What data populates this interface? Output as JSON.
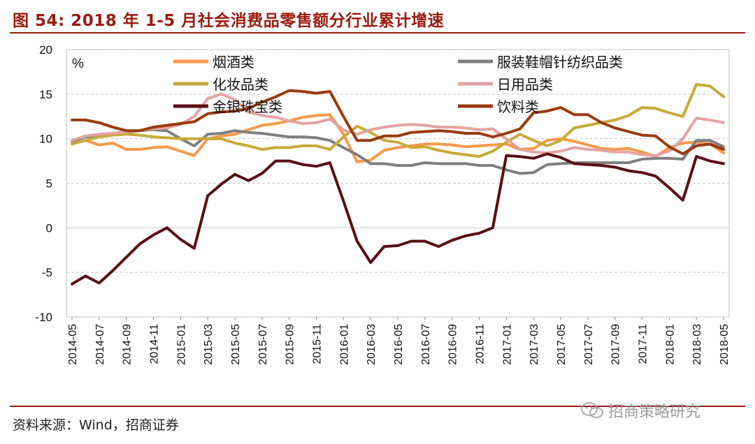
{
  "header": {
    "title": "图 54: 2018 年 1-5 月社会消费品零售额分行业累计增速"
  },
  "footer": {
    "source": "资料来源：Wind，招商证券",
    "watermark": "招商策略研究"
  },
  "colors": {
    "accent": "#9a1b0e"
  },
  "chart_data": {
    "type": "line",
    "unit_label": "%",
    "ylim": [
      -10,
      20
    ],
    "yticks": [
      20,
      15,
      10,
      5,
      0,
      -5,
      -10
    ],
    "grid": true,
    "x": [
      "2014-05",
      "2014-06",
      "2014-07",
      "2014-08",
      "2014-09",
      "2014-10",
      "2014-11",
      "2014-12",
      "2015-01",
      "2015-02",
      "2015-03",
      "2015-04",
      "2015-05",
      "2015-06",
      "2015-07",
      "2015-08",
      "2015-09",
      "2015-10",
      "2015-11",
      "2015-12",
      "2016-01",
      "2016-02",
      "2016-03",
      "2016-04",
      "2016-05",
      "2016-06",
      "2016-07",
      "2016-08",
      "2016-09",
      "2016-10",
      "2016-11",
      "2016-12",
      "2017-01",
      "2017-02",
      "2017-03",
      "2017-04",
      "2017-05",
      "2017-06",
      "2017-07",
      "2017-08",
      "2017-09",
      "2017-10",
      "2017-11",
      "2017-12",
      "2018-01",
      "2018-02",
      "2018-03",
      "2018-04",
      "2018-05"
    ],
    "xtick_labels": [
      "2014-05",
      "2014-07",
      "2014-09",
      "2014-11",
      "2015-01",
      "2015-03",
      "2015-05",
      "2015-07",
      "2015-09",
      "2015-11",
      "2016-01",
      "2016-03",
      "2016-05",
      "2016-07",
      "2016-09",
      "2016-11",
      "2017-01",
      "2017-03",
      "2017-05",
      "2017-07",
      "2017-09",
      "2017-11",
      "2018-01",
      "2018-03",
      "2018-05"
    ],
    "series": [
      {
        "name": "烟酒类",
        "color": "#f59a4a",
        "values": [
          9.5,
          9.8,
          9.3,
          9.5,
          8.8,
          8.8,
          9.0,
          9.1,
          8.6,
          8.1,
          10.0,
          10.3,
          10.5,
          11.0,
          11.5,
          11.7,
          12.0,
          12.4,
          12.6,
          12.7,
          10.5,
          7.4,
          7.6,
          8.7,
          9.0,
          9.2,
          9.4,
          9.4,
          9.3,
          9.1,
          9.2,
          9.3,
          9.4,
          8.8,
          8.9,
          9.8,
          10.0,
          9.7,
          9.3,
          8.9,
          8.8,
          8.9,
          8.5,
          8.0,
          9.0,
          9.5,
          9.6,
          9.4,
          8.4
        ]
      },
      {
        "name": "服装鞋帽针纺织品类",
        "color": "#7f7f7f",
        "values": [
          9.7,
          10.2,
          10.3,
          10.5,
          10.7,
          10.9,
          11.0,
          10.9,
          10.0,
          9.2,
          10.5,
          10.6,
          10.9,
          10.7,
          10.6,
          10.4,
          10.2,
          10.2,
          10.1,
          9.8,
          9.0,
          8.2,
          7.2,
          7.2,
          7.0,
          7.0,
          7.3,
          7.2,
          7.2,
          7.2,
          7.0,
          7.0,
          6.5,
          6.1,
          6.2,
          7.1,
          7.2,
          7.3,
          7.3,
          7.3,
          7.3,
          7.3,
          7.7,
          7.8,
          7.8,
          7.7,
          9.8,
          9.8,
          9.1
        ]
      },
      {
        "name": "化妆品类",
        "color": "#c8aa3a",
        "values": [
          9.4,
          9.8,
          10.2,
          10.4,
          10.5,
          10.4,
          10.2,
          10.1,
          10.0,
          10.0,
          10.0,
          10.0,
          9.5,
          9.2,
          8.8,
          9.0,
          9.0,
          9.2,
          9.2,
          8.8,
          10.2,
          11.4,
          10.7,
          9.8,
          9.6,
          9.0,
          9.1,
          8.7,
          8.4,
          8.2,
          8.0,
          8.6,
          9.6,
          10.5,
          9.8,
          9.2,
          9.8,
          11.2,
          11.5,
          11.8,
          12.1,
          12.6,
          13.5,
          13.4,
          12.9,
          12.5,
          16.1,
          15.9,
          14.7
        ]
      },
      {
        "name": "日用品类",
        "color": "#e5a3a3",
        "values": [
          9.8,
          10.3,
          10.5,
          10.6,
          10.8,
          10.9,
          11.1,
          11.2,
          11.6,
          12.5,
          14.5,
          15.0,
          14.4,
          13.0,
          12.6,
          12.4,
          12.0,
          11.7,
          11.8,
          12.2,
          11.0,
          10.5,
          11.0,
          11.3,
          11.5,
          11.6,
          11.5,
          11.3,
          11.3,
          11.2,
          11.0,
          11.1,
          10.0,
          8.8,
          8.5,
          8.4,
          8.6,
          9.0,
          8.8,
          8.7,
          8.5,
          8.5,
          8.2,
          8.1,
          8.6,
          10.0,
          12.3,
          12.1,
          11.8
        ]
      },
      {
        "name": "金银珠宝类",
        "color": "#5a0f14",
        "values": [
          -6.3,
          -5.4,
          -6.2,
          -4.8,
          -3.3,
          -1.8,
          -0.8,
          0.0,
          -1.3,
          -2.3,
          3.6,
          4.9,
          6.0,
          5.3,
          6.1,
          7.5,
          7.5,
          7.1,
          6.9,
          7.3,
          3.0,
          -1.5,
          -3.9,
          -2.1,
          -2.0,
          -1.5,
          -1.5,
          -2.1,
          -1.4,
          -0.9,
          -0.6,
          0.0,
          8.1,
          8.0,
          7.8,
          8.3,
          7.9,
          7.2,
          7.1,
          7.0,
          6.8,
          6.4,
          6.2,
          5.8,
          4.5,
          3.1,
          8.0,
          7.5,
          7.2
        ]
      },
      {
        "name": "饮料类",
        "color": "#9a3a0f",
        "values": [
          12.1,
          12.1,
          11.8,
          11.3,
          10.9,
          10.9,
          11.3,
          11.5,
          11.7,
          11.9,
          12.8,
          13.0,
          13.1,
          13.4,
          14.1,
          14.7,
          15.4,
          15.3,
          15.1,
          15.3,
          12.5,
          9.8,
          9.8,
          10.3,
          10.3,
          10.7,
          10.8,
          10.9,
          10.8,
          10.6,
          10.6,
          10.2,
          10.6,
          11.1,
          12.9,
          13.1,
          13.5,
          12.7,
          12.7,
          11.8,
          11.2,
          10.8,
          10.4,
          10.3,
          9.1,
          8.3,
          9.2,
          9.4,
          8.8
        ]
      }
    ],
    "legend": [
      {
        "series": "烟酒类"
      },
      {
        "series": "服装鞋帽针纺织品类"
      },
      {
        "series": "化妆品类"
      },
      {
        "series": "日用品类"
      },
      {
        "series": "金银珠宝类"
      },
      {
        "series": "饮料类"
      }
    ]
  }
}
